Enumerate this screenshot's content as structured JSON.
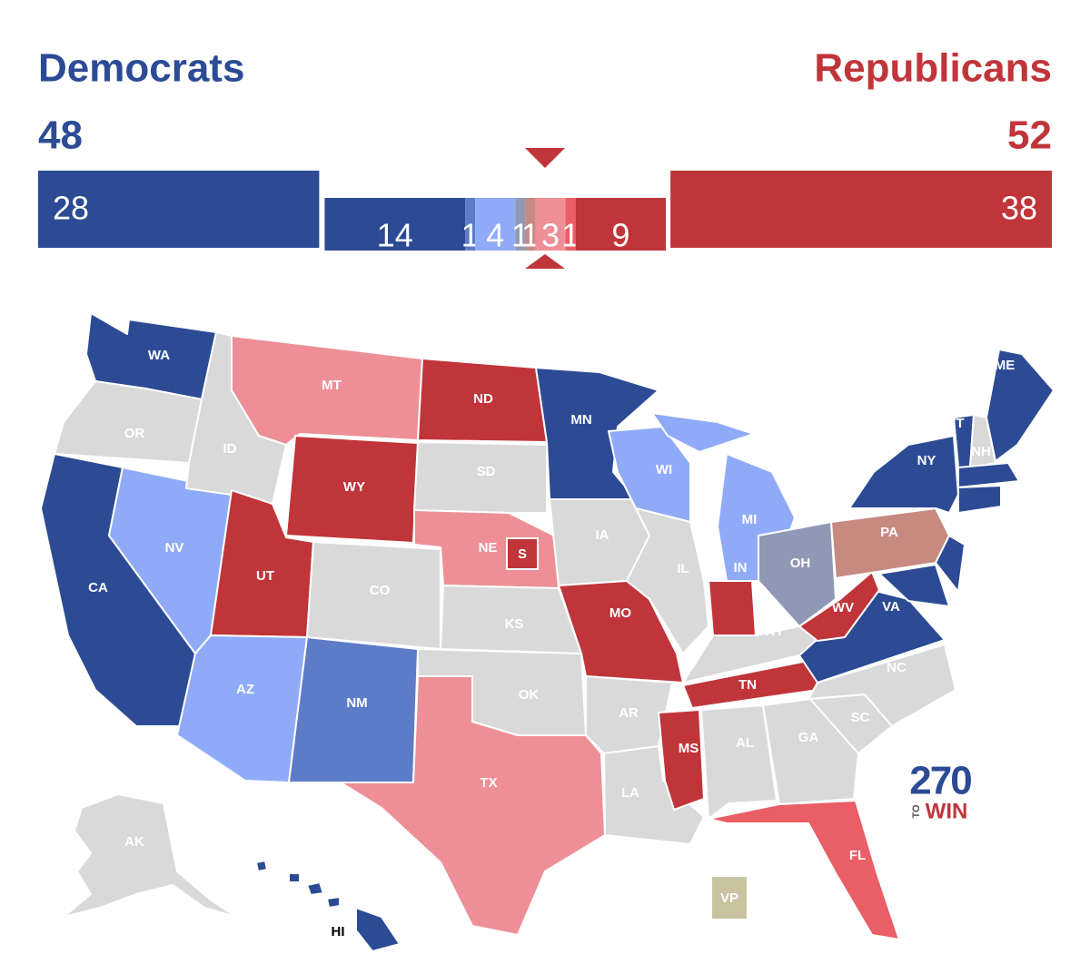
{
  "header": {
    "dem_label": "Democrats",
    "dem_seats": 48,
    "rep_label": "Republicans",
    "rep_seats": 52
  },
  "bar": {
    "segments": [
      {
        "value": 28,
        "color": "#2c4b94"
      },
      {
        "value": 14,
        "color": "#2c4b94"
      },
      {
        "value": 1,
        "color": "#5c7cc8"
      },
      {
        "value": 4,
        "color": "#8fabf7"
      },
      {
        "value": 1,
        "color": "#8f98b5"
      },
      {
        "value": 1,
        "color": "#c68a80"
      },
      {
        "value": 3,
        "color": "#ee8f97"
      },
      {
        "value": 1,
        "color": "#ea5e66"
      },
      {
        "value": 9,
        "color": "#c0353a"
      },
      {
        "value": 38,
        "color": "#c0353a"
      }
    ]
  },
  "states": [
    {
      "label": "WA",
      "color": "#2c4b94"
    },
    {
      "label": "OR",
      "color": "#d9d9d9"
    },
    {
      "label": "CA",
      "color": "#2c4b94"
    },
    {
      "label": "NV",
      "color": "#8fabf7"
    },
    {
      "label": "ID",
      "color": "#d9d9d9"
    },
    {
      "label": "MT",
      "color": "#ee8f97"
    },
    {
      "label": "WY",
      "color": "#c0353a"
    },
    {
      "label": "UT",
      "color": "#c0353a"
    },
    {
      "label": "AZ",
      "color": "#8fabf7"
    },
    {
      "label": "CO",
      "color": "#d9d9d9"
    },
    {
      "label": "NM",
      "color": "#5c7cc8"
    },
    {
      "label": "ND",
      "color": "#c0353a"
    },
    {
      "label": "SD",
      "color": "#d9d9d9"
    },
    {
      "label": "NE",
      "color": "#ee8f97"
    },
    {
      "label": "KS",
      "color": "#d9d9d9"
    },
    {
      "label": "OK",
      "color": "#d9d9d9"
    },
    {
      "label": "TX",
      "color": "#ee8f97"
    },
    {
      "label": "MN",
      "color": "#2c4b94"
    },
    {
      "label": "IA",
      "color": "#d9d9d9"
    },
    {
      "label": "MO",
      "color": "#c0353a"
    },
    {
      "label": "AR",
      "color": "#d9d9d9"
    },
    {
      "label": "LA",
      "color": "#d9d9d9"
    },
    {
      "label": "WI",
      "color": "#8fabf7"
    },
    {
      "label": "IL",
      "color": "#d9d9d9"
    },
    {
      "label": "MI",
      "color": "#8fabf7"
    },
    {
      "label": "IN",
      "color": "#c0353a"
    },
    {
      "label": "OH",
      "color": "#8f98b5"
    },
    {
      "label": "KY",
      "color": "#d9d9d9"
    },
    {
      "label": "TN",
      "color": "#c0353a"
    },
    {
      "label": "MS",
      "color": "#c0353a"
    },
    {
      "label": "AL",
      "color": "#d9d9d9"
    },
    {
      "label": "GA",
      "color": "#d9d9d9"
    },
    {
      "label": "FL",
      "color": "#ea5e66"
    },
    {
      "label": "SC",
      "color": "#d9d9d9"
    },
    {
      "label": "NC",
      "color": "#d9d9d9"
    },
    {
      "label": "VA",
      "color": "#2c4b94"
    },
    {
      "label": "WV",
      "color": "#c0353a"
    },
    {
      "label": "PA",
      "color": "#c68a80"
    },
    {
      "label": "NY",
      "color": "#2c4b94"
    },
    {
      "label": "VT",
      "color": "#2c4b94"
    },
    {
      "label": "NH",
      "color": "#d9d9d9"
    },
    {
      "label": "ME",
      "color": "#2c4b94"
    },
    {
      "label": null,
      "color": "#2c4b94"
    },
    {
      "label": null,
      "color": "#2c4b94"
    },
    {
      "label": null,
      "color": "#2c4b94"
    },
    {
      "label": null,
      "color": "#2c4b94"
    },
    {
      "label": "AK",
      "color": "#d9d9d9"
    },
    {
      "label": "HI",
      "color": "#2c4b94"
    }
  ],
  "special": {
    "label": "S",
    "color": "#c0353a"
  },
  "vp": {
    "label": "VP",
    "color": "#c9c3a0"
  },
  "logo": {
    "number": "270",
    "to": "TO",
    "win": "WIN"
  }
}
